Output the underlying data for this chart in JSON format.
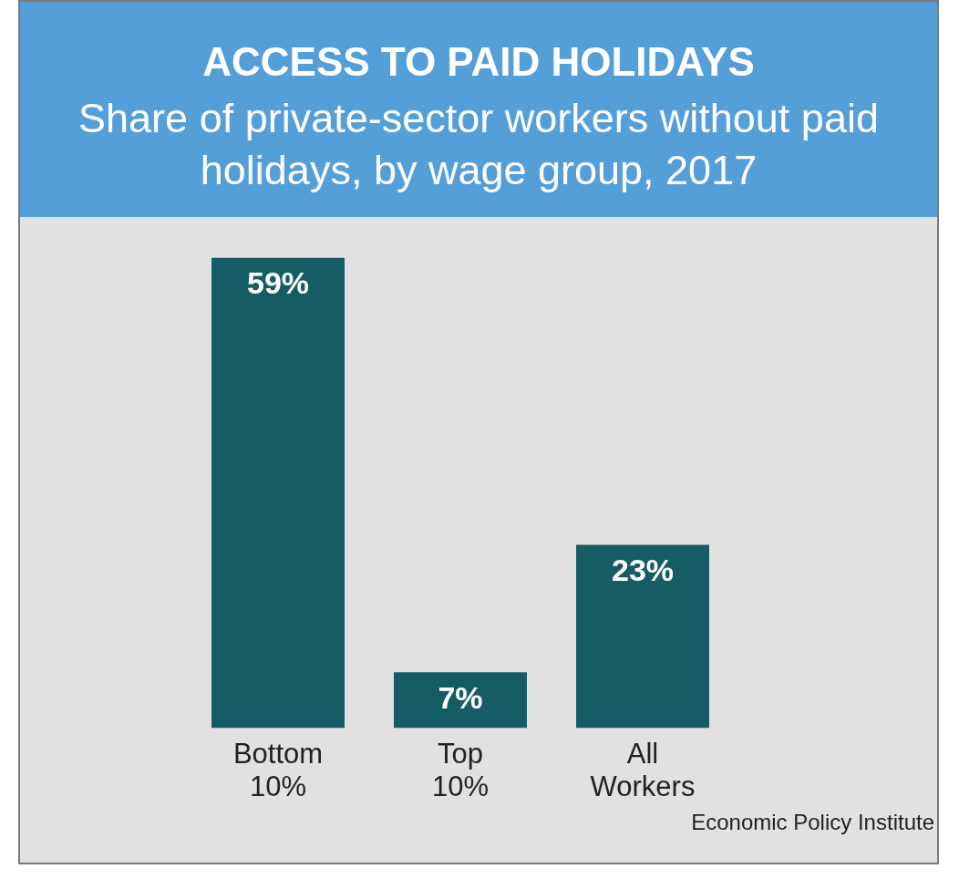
{
  "chart_data": {
    "type": "bar",
    "title": "ACCESS TO PAID HOLIDAYS",
    "subtitle": "Share of private-sector workers without paid holidays, by wage group, 2017",
    "categories": [
      "Bottom 10%",
      "Top 10%",
      "All Workers"
    ],
    "values": [
      59,
      7,
      23
    ],
    "color": "#165c65",
    "value_labels": [
      "59%",
      "7%",
      "23%"
    ],
    "annotations": [
      "Economic Policy Institute"
    ]
  }
}
